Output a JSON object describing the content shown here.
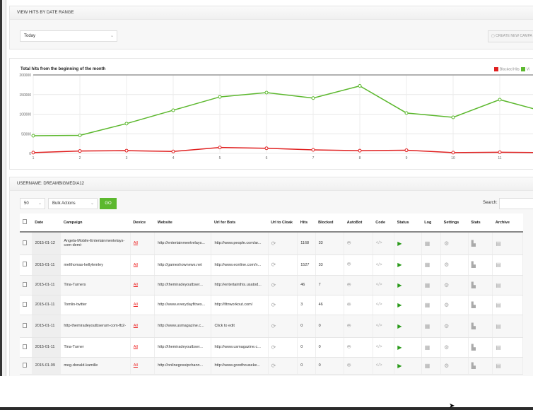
{
  "date_panel": {
    "title": "VIEW HITS BY DATE RANGE",
    "range_value": "Today",
    "create_label": "CREATE NEW CAMPA"
  },
  "chart_data": {
    "type": "line",
    "title": "Total hits from the beginning of the month",
    "x": [
      1,
      2,
      3,
      4,
      5,
      6,
      7,
      8,
      9,
      10,
      11,
      12
    ],
    "xticks": [
      "1",
      "2",
      "3",
      "4",
      "5",
      "6",
      "7",
      "8",
      "9",
      "10",
      "11"
    ],
    "yticks": [
      "200000",
      "150000",
      "100000",
      "50000",
      "0"
    ],
    "ylim": [
      0,
      200000
    ],
    "grid": true,
    "legend": "top-right",
    "series": [
      {
        "name": "Blocked Hits",
        "color": "#e02020",
        "values": [
          2000,
          6000,
          7000,
          5000,
          15000,
          13000,
          9000,
          7000,
          8000,
          2000,
          3000,
          2000
        ]
      },
      {
        "name": "Vi",
        "color": "#5cb82e",
        "values": [
          45000,
          46000,
          76000,
          110000,
          144000,
          155000,
          141000,
          172000,
          103000,
          92000,
          137000,
          105000
        ]
      }
    ]
  },
  "campaigns": {
    "title": "USERNAME: DREAMBIGMEDIA12",
    "per_page": "50",
    "bulk_label": "Bulk Actions",
    "go_label": "GO",
    "search_label": "Search:",
    "columns": [
      "Date",
      "Campaign",
      "Device",
      "Website",
      "Url for Bots",
      "Url to Cloak",
      "Hits",
      "Blocked",
      "AutoBot",
      "Code",
      "Status",
      "Log",
      "Settings",
      "Stats",
      "Archive"
    ],
    "rows": [
      {
        "date": "2015-01-12",
        "campaign": "Angela-Mobile-Entertainmentelays-com-demi-",
        "device": "All",
        "website": "http://entertainmentrelays...",
        "bots": "http://www.people.com/ar...",
        "hits": "1168",
        "blocked": "33"
      },
      {
        "date": "2015-01-11",
        "campaign": "melthomas-kellylemley",
        "device": "All",
        "website": "http://gameshownews.net",
        "bots": "http://www.eonline.com/n...",
        "hits": "1527",
        "blocked": "33"
      },
      {
        "date": "2015-01-11",
        "campaign": "Tina-Turners",
        "device": "All",
        "website": "http://themiradeyoutbser...",
        "bots": "http://entertainthis.usatod...",
        "hits": "46",
        "blocked": "7"
      },
      {
        "date": "2015-01-11",
        "campaign": "Tomlin-twitter",
        "device": "All",
        "website": "http://www.everydayfitnes...",
        "bots": "http://fitnworkout.com/",
        "hits": "3",
        "blocked": "46"
      },
      {
        "date": "2015-01-11",
        "campaign": "http-themiradeyoutbserum-com-fb2-",
        "device": "All",
        "website": "http://www.usmagazine.c...",
        "bots": "Click to edit",
        "hits": "0",
        "blocked": "0"
      },
      {
        "date": "2015-01-11",
        "campaign": "Tina-Turner",
        "device": "All",
        "website": "http://themiradeyoutbser...",
        "bots": "http://www.usmagazine.c...",
        "hits": "0",
        "blocked": "0"
      },
      {
        "date": "2015-01-09",
        "campaign": "meg-donald-kamille",
        "device": "All",
        "website": "http://onlinegossipchann...",
        "bots": "http://www.goodhouseke...",
        "hits": "0",
        "blocked": "0"
      }
    ]
  }
}
